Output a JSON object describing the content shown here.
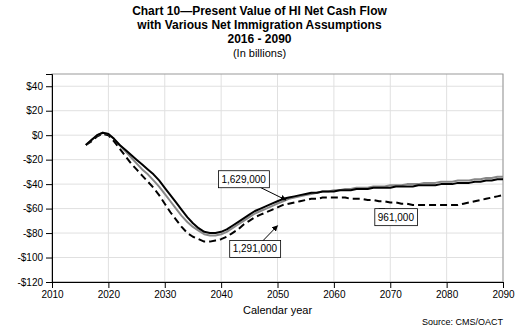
{
  "chart_data": {
    "type": "line",
    "title": [
      "Chart 10—Present Value of HI Net Cash Flow",
      "with Various Net Immigration Assumptions",
      "2016 - 2090"
    ],
    "subtitle": "(In billions)",
    "xlabel": "Calendar year",
    "source": "Source: CMS/OACT",
    "xlim": [
      2010,
      2090
    ],
    "ylim": [
      -120,
      50
    ],
    "xticks": [
      2010,
      2020,
      2030,
      2040,
      2050,
      2060,
      2070,
      2080,
      2090
    ],
    "yticks": [
      {
        "value": 40,
        "label": "$40"
      },
      {
        "value": 20,
        "label": "$20"
      },
      {
        "value": 0,
        "label": "$0"
      },
      {
        "value": -20,
        "label": "-$20"
      },
      {
        "value": -40,
        "label": "-$40"
      },
      {
        "value": -60,
        "label": "-$60"
      },
      {
        "value": -80,
        "label": "-$80"
      },
      {
        "value": -100,
        "label": "-$100"
      },
      {
        "value": -120,
        "label": "-$120"
      }
    ],
    "grid": true,
    "x": [
      2016,
      2017,
      2018,
      2019,
      2020,
      2021,
      2022,
      2023,
      2024,
      2025,
      2026,
      2027,
      2028,
      2029,
      2030,
      2031,
      2032,
      2033,
      2034,
      2035,
      2036,
      2037,
      2038,
      2039,
      2040,
      2041,
      2042,
      2043,
      2044,
      2045,
      2046,
      2047,
      2048,
      2049,
      2050,
      2051,
      2052,
      2053,
      2054,
      2055,
      2056,
      2057,
      2058,
      2059,
      2060,
      2061,
      2062,
      2063,
      2064,
      2065,
      2066,
      2067,
      2068,
      2069,
      2070,
      2071,
      2072,
      2073,
      2074,
      2075,
      2076,
      2077,
      2078,
      2079,
      2080,
      2081,
      2082,
      2083,
      2084,
      2085,
      2086,
      2087,
      2088,
      2089,
      2090
    ],
    "series": [
      {
        "color": "#000000",
        "line_style": "dashed",
        "values": [
          -8,
          -5,
          -1,
          1,
          0,
          -5,
          -11,
          -17,
          -23,
          -28,
          -33,
          -38,
          -43,
          -49,
          -56,
          -63,
          -69,
          -75,
          -80,
          -83,
          -85,
          -87,
          -87,
          -86,
          -85,
          -83,
          -80,
          -77,
          -73,
          -70,
          -67,
          -65,
          -63,
          -61,
          -59,
          -57,
          -56,
          -55,
          -54,
          -53,
          -52,
          -52,
          -51,
          -51,
          -51,
          -51,
          -51,
          -52,
          -52,
          -52,
          -53,
          -53,
          -54,
          -54,
          -55,
          -55,
          -56,
          -56,
          -57,
          -57,
          -57,
          -57,
          -57,
          -57,
          -57,
          -57,
          -57,
          -56,
          -55,
          -54,
          -53,
          -52,
          -51,
          -50,
          -49
        ]
      },
      {
        "color": "#888888",
        "line_style": "solid",
        "values": [
          -8,
          -4,
          0,
          2,
          1,
          -3,
          -8,
          -13,
          -18,
          -23,
          -28,
          -32,
          -37,
          -42,
          -48,
          -54,
          -60,
          -66,
          -71,
          -75,
          -78,
          -81,
          -82,
          -82,
          -81,
          -79,
          -76,
          -73,
          -70,
          -67,
          -64,
          -62,
          -60,
          -58,
          -56,
          -54,
          -52,
          -51,
          -50,
          -49,
          -48,
          -47,
          -46,
          -46,
          -45,
          -45,
          -44,
          -44,
          -43,
          -43,
          -43,
          -42,
          -42,
          -42,
          -41,
          -41,
          -41,
          -40,
          -40,
          -40,
          -39,
          -39,
          -39,
          -38,
          -38,
          -38,
          -37,
          -37,
          -37,
          -36,
          -36,
          -35,
          -35,
          -34,
          -34
        ]
      },
      {
        "color": "#000000",
        "line_style": "solid",
        "values": [
          -8,
          -4,
          0,
          2,
          1,
          -3,
          -8,
          -12,
          -16,
          -20,
          -24,
          -28,
          -32,
          -37,
          -43,
          -49,
          -55,
          -61,
          -67,
          -72,
          -76,
          -79,
          -80,
          -80,
          -79,
          -77,
          -74,
          -71,
          -68,
          -65,
          -62,
          -60,
          -58,
          -56,
          -54,
          -52,
          -51,
          -50,
          -49,
          -48,
          -47,
          -47,
          -46,
          -46,
          -46,
          -45,
          -45,
          -45,
          -44,
          -44,
          -44,
          -43,
          -43,
          -43,
          -43,
          -42,
          -42,
          -42,
          -42,
          -41,
          -41,
          -41,
          -41,
          -40,
          -40,
          -40,
          -39,
          -39,
          -39,
          -38,
          -38,
          -37,
          -37,
          -36,
          -36
        ]
      }
    ],
    "annotations": [
      {
        "text": "1,629,000",
        "xy": [
          2051.5,
          -53
        ],
        "xytext": [
          2044,
          -36
        ]
      },
      {
        "text": "1,291,000",
        "xy": [
          2050,
          -74
        ],
        "xytext": [
          2046,
          -93
        ]
      },
      {
        "text": "961,000",
        "xy": [
          2068,
          -60
        ],
        "xytext": [
          2071,
          -67
        ]
      }
    ]
  }
}
